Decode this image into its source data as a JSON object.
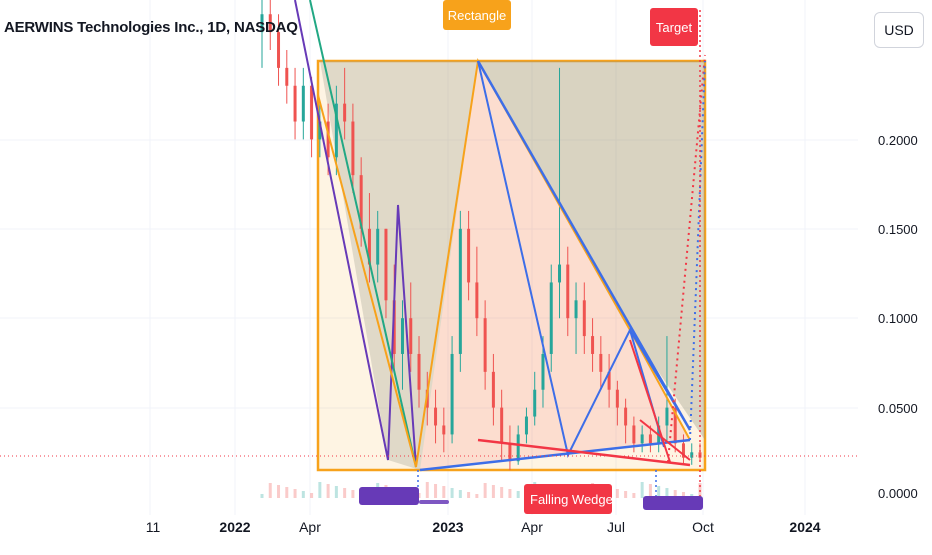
{
  "header": {
    "title": "AERWINS Technologies Inc., 1D, NASDAQ"
  },
  "currency_button": {
    "label": "USD"
  },
  "annotations": {
    "rectangle_label": "Rectangle",
    "target_label": "Target",
    "falling_wedge_label": "Falling Wedge"
  },
  "colors": {
    "up_candle": "#26a69a",
    "down_candle": "#ef5350",
    "rectangle": "#f7a21b",
    "wedge_blue": "#3d6ee8",
    "wedge_red": "#f23645",
    "purple": "#673ab7",
    "teal": "#22a884",
    "price_line": "#f23645"
  },
  "chart_data": {
    "type": "candlestick",
    "title": "AERWINS Technologies Inc., 1D, NASDAQ",
    "currency": "USD",
    "x_ticks": [
      "11",
      "2022",
      "Apr",
      "2023",
      "Apr",
      "Jul",
      "Oct",
      "2024"
    ],
    "y_ticks": [
      "0.0000",
      "0.0500",
      "0.1000",
      "0.1500",
      "0.2000"
    ],
    "ylim": [
      0,
      0.25
    ],
    "series": [
      {
        "values": [
          {
            "o": 0.26,
            "h": 0.28,
            "l": 0.24,
            "c": 0.27
          },
          {
            "o": 0.27,
            "h": 0.29,
            "l": 0.25,
            "c": 0.26
          },
          {
            "o": 0.26,
            "h": 0.27,
            "l": 0.23,
            "c": 0.24
          },
          {
            "o": 0.24,
            "h": 0.25,
            "l": 0.22,
            "c": 0.23
          },
          {
            "o": 0.23,
            "h": 0.24,
            "l": 0.2,
            "c": 0.21
          },
          {
            "o": 0.21,
            "h": 0.24,
            "l": 0.2,
            "c": 0.23
          },
          {
            "o": 0.23,
            "h": 0.235,
            "l": 0.19,
            "c": 0.2
          },
          {
            "o": 0.2,
            "h": 0.22,
            "l": 0.19,
            "c": 0.21
          },
          {
            "o": 0.21,
            "h": 0.22,
            "l": 0.18,
            "c": 0.19
          },
          {
            "o": 0.19,
            "h": 0.23,
            "l": 0.18,
            "c": 0.22
          },
          {
            "o": 0.22,
            "h": 0.24,
            "l": 0.2,
            "c": 0.21
          },
          {
            "o": 0.21,
            "h": 0.22,
            "l": 0.17,
            "c": 0.18
          },
          {
            "o": 0.18,
            "h": 0.19,
            "l": 0.14,
            "c": 0.15
          },
          {
            "o": 0.15,
            "h": 0.17,
            "l": 0.12,
            "c": 0.13
          },
          {
            "o": 0.13,
            "h": 0.16,
            "l": 0.12,
            "c": 0.15
          },
          {
            "o": 0.15,
            "h": 0.15,
            "l": 0.1,
            "c": 0.11
          },
          {
            "o": 0.11,
            "h": 0.13,
            "l": 0.07,
            "c": 0.08
          },
          {
            "o": 0.08,
            "h": 0.11,
            "l": 0.06,
            "c": 0.1
          },
          {
            "o": 0.1,
            "h": 0.12,
            "l": 0.07,
            "c": 0.08
          },
          {
            "o": 0.08,
            "h": 0.09,
            "l": 0.05,
            "c": 0.06
          },
          {
            "o": 0.06,
            "h": 0.07,
            "l": 0.04,
            "c": 0.05
          },
          {
            "o": 0.05,
            "h": 0.06,
            "l": 0.03,
            "c": 0.04
          },
          {
            "o": 0.04,
            "h": 0.05,
            "l": 0.025,
            "c": 0.035
          },
          {
            "o": 0.035,
            "h": 0.09,
            "l": 0.03,
            "c": 0.08
          },
          {
            "o": 0.08,
            "h": 0.16,
            "l": 0.07,
            "c": 0.15
          },
          {
            "o": 0.15,
            "h": 0.16,
            "l": 0.11,
            "c": 0.12
          },
          {
            "o": 0.12,
            "h": 0.14,
            "l": 0.09,
            "c": 0.1
          },
          {
            "o": 0.1,
            "h": 0.11,
            "l": 0.06,
            "c": 0.07
          },
          {
            "o": 0.07,
            "h": 0.08,
            "l": 0.04,
            "c": 0.05
          },
          {
            "o": 0.05,
            "h": 0.06,
            "l": 0.02,
            "c": 0.03
          },
          {
            "o": 0.03,
            "h": 0.04,
            "l": 0.015,
            "c": 0.02
          },
          {
            "o": 0.02,
            "h": 0.04,
            "l": 0.018,
            "c": 0.035
          },
          {
            "o": 0.035,
            "h": 0.05,
            "l": 0.03,
            "c": 0.045
          },
          {
            "o": 0.045,
            "h": 0.07,
            "l": 0.04,
            "c": 0.06
          },
          {
            "o": 0.06,
            "h": 0.09,
            "l": 0.05,
            "c": 0.08
          },
          {
            "o": 0.08,
            "h": 0.13,
            "l": 0.07,
            "c": 0.12
          },
          {
            "o": 0.12,
            "h": 0.24,
            "l": 0.1,
            "c": 0.13
          },
          {
            "o": 0.13,
            "h": 0.14,
            "l": 0.09,
            "c": 0.1
          },
          {
            "o": 0.1,
            "h": 0.12,
            "l": 0.08,
            "c": 0.11
          },
          {
            "o": 0.11,
            "h": 0.12,
            "l": 0.08,
            "c": 0.09
          },
          {
            "o": 0.09,
            "h": 0.1,
            "l": 0.07,
            "c": 0.08
          },
          {
            "o": 0.08,
            "h": 0.09,
            "l": 0.06,
            "c": 0.07
          },
          {
            "o": 0.07,
            "h": 0.08,
            "l": 0.05,
            "c": 0.06
          },
          {
            "o": 0.06,
            "h": 0.065,
            "l": 0.04,
            "c": 0.05
          },
          {
            "o": 0.05,
            "h": 0.055,
            "l": 0.03,
            "c": 0.04
          },
          {
            "o": 0.04,
            "h": 0.045,
            "l": 0.025,
            "c": 0.03
          },
          {
            "o": 0.03,
            "h": 0.04,
            "l": 0.025,
            "c": 0.035
          },
          {
            "o": 0.035,
            "h": 0.04,
            "l": 0.025,
            "c": 0.03
          },
          {
            "o": 0.03,
            "h": 0.045,
            "l": 0.025,
            "c": 0.04
          },
          {
            "o": 0.04,
            "h": 0.09,
            "l": 0.03,
            "c": 0.05
          },
          {
            "o": 0.05,
            "h": 0.055,
            "l": 0.025,
            "c": 0.03
          },
          {
            "o": 0.03,
            "h": 0.035,
            "l": 0.018,
            "c": 0.022
          },
          {
            "o": 0.022,
            "h": 0.03,
            "l": 0.018,
            "c": 0.025
          },
          {
            "o": 0.025,
            "h": 0.03,
            "l": 0.02,
            "c": 0.022
          }
        ]
      }
    ],
    "annotations": [
      "Rectangle",
      "Target",
      "Falling Wedge"
    ]
  }
}
